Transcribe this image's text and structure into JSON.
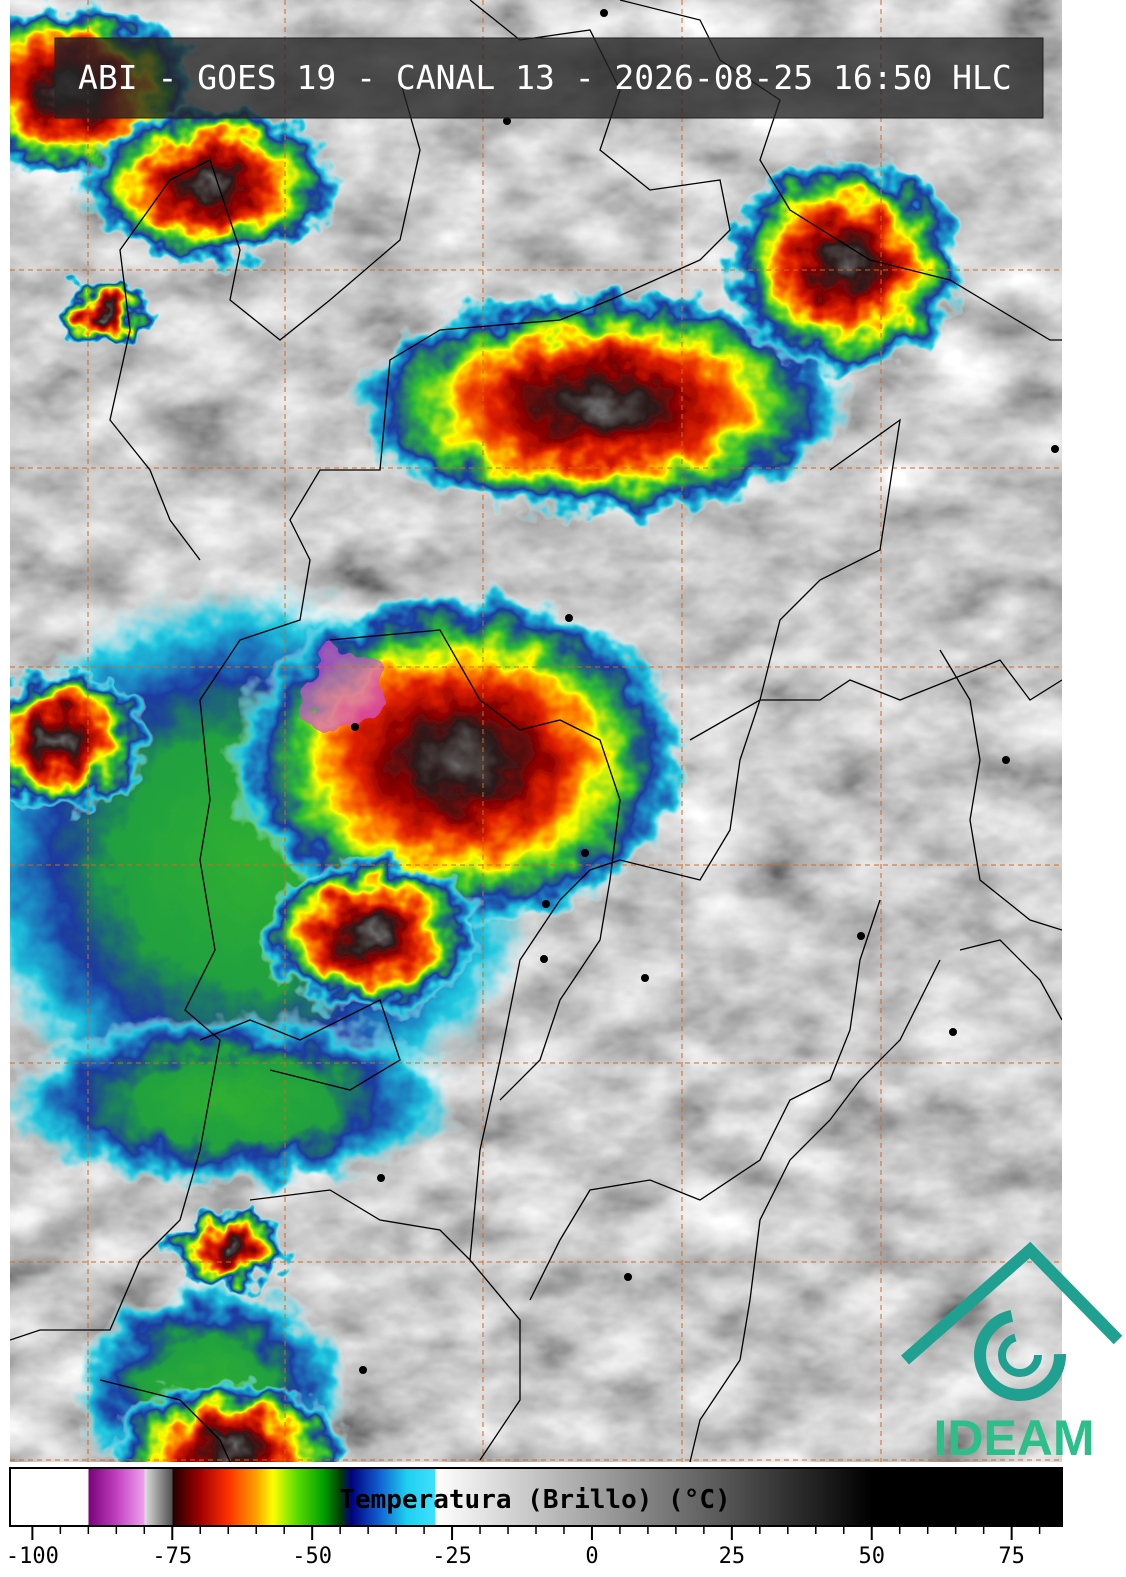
{
  "header": {
    "title": "ABI - GOES 19 - CANAL 13 - 2026-08-25 16:50 HLC"
  },
  "colorbar": {
    "title": "Temperatura (Brillo) (°C)",
    "lim": [
      -104,
      84
    ],
    "ticks": [
      -100,
      -75,
      -50,
      -25,
      0,
      25,
      50,
      75
    ],
    "minor_ticks": [
      -95,
      -90,
      -85,
      -80,
      -70,
      -65,
      -60,
      -55,
      -45,
      -40,
      -35,
      -30,
      -20,
      -15,
      -10,
      -5,
      5,
      10,
      15,
      20,
      30,
      35,
      40,
      45,
      55,
      60,
      65,
      70,
      80
    ],
    "stops": [
      {
        "value": -104,
        "color": "#ffffff"
      },
      {
        "value": -90,
        "color": "#ffffff"
      },
      {
        "value": -90,
        "color": "#7a007a"
      },
      {
        "value": -85,
        "color": "#c040c0"
      },
      {
        "value": -80,
        "color": "#f0a0f0"
      },
      {
        "value": -80,
        "color": "#e0e0e0"
      },
      {
        "value": -75,
        "color": "#505050"
      },
      {
        "value": -75,
        "color": "#200000"
      },
      {
        "value": -70,
        "color": "#a00000"
      },
      {
        "value": -65,
        "color": "#ff3000"
      },
      {
        "value": -60,
        "color": "#ffa000"
      },
      {
        "value": -57,
        "color": "#ffff00"
      },
      {
        "value": -53,
        "color": "#60e000"
      },
      {
        "value": -48,
        "color": "#00a000"
      },
      {
        "value": -45,
        "color": "#004000"
      },
      {
        "value": -43,
        "color": "#000080"
      },
      {
        "value": -38,
        "color": "#1060d0"
      },
      {
        "value": -33,
        "color": "#20d0f0"
      },
      {
        "value": -28,
        "color": "#40e0ff"
      },
      {
        "value": -28,
        "color": "#ffffff"
      },
      {
        "value": 50,
        "color": "#000000"
      },
      {
        "value": 84,
        "color": "#000000"
      }
    ]
  },
  "logo": {
    "text": "IDEAM"
  }
}
